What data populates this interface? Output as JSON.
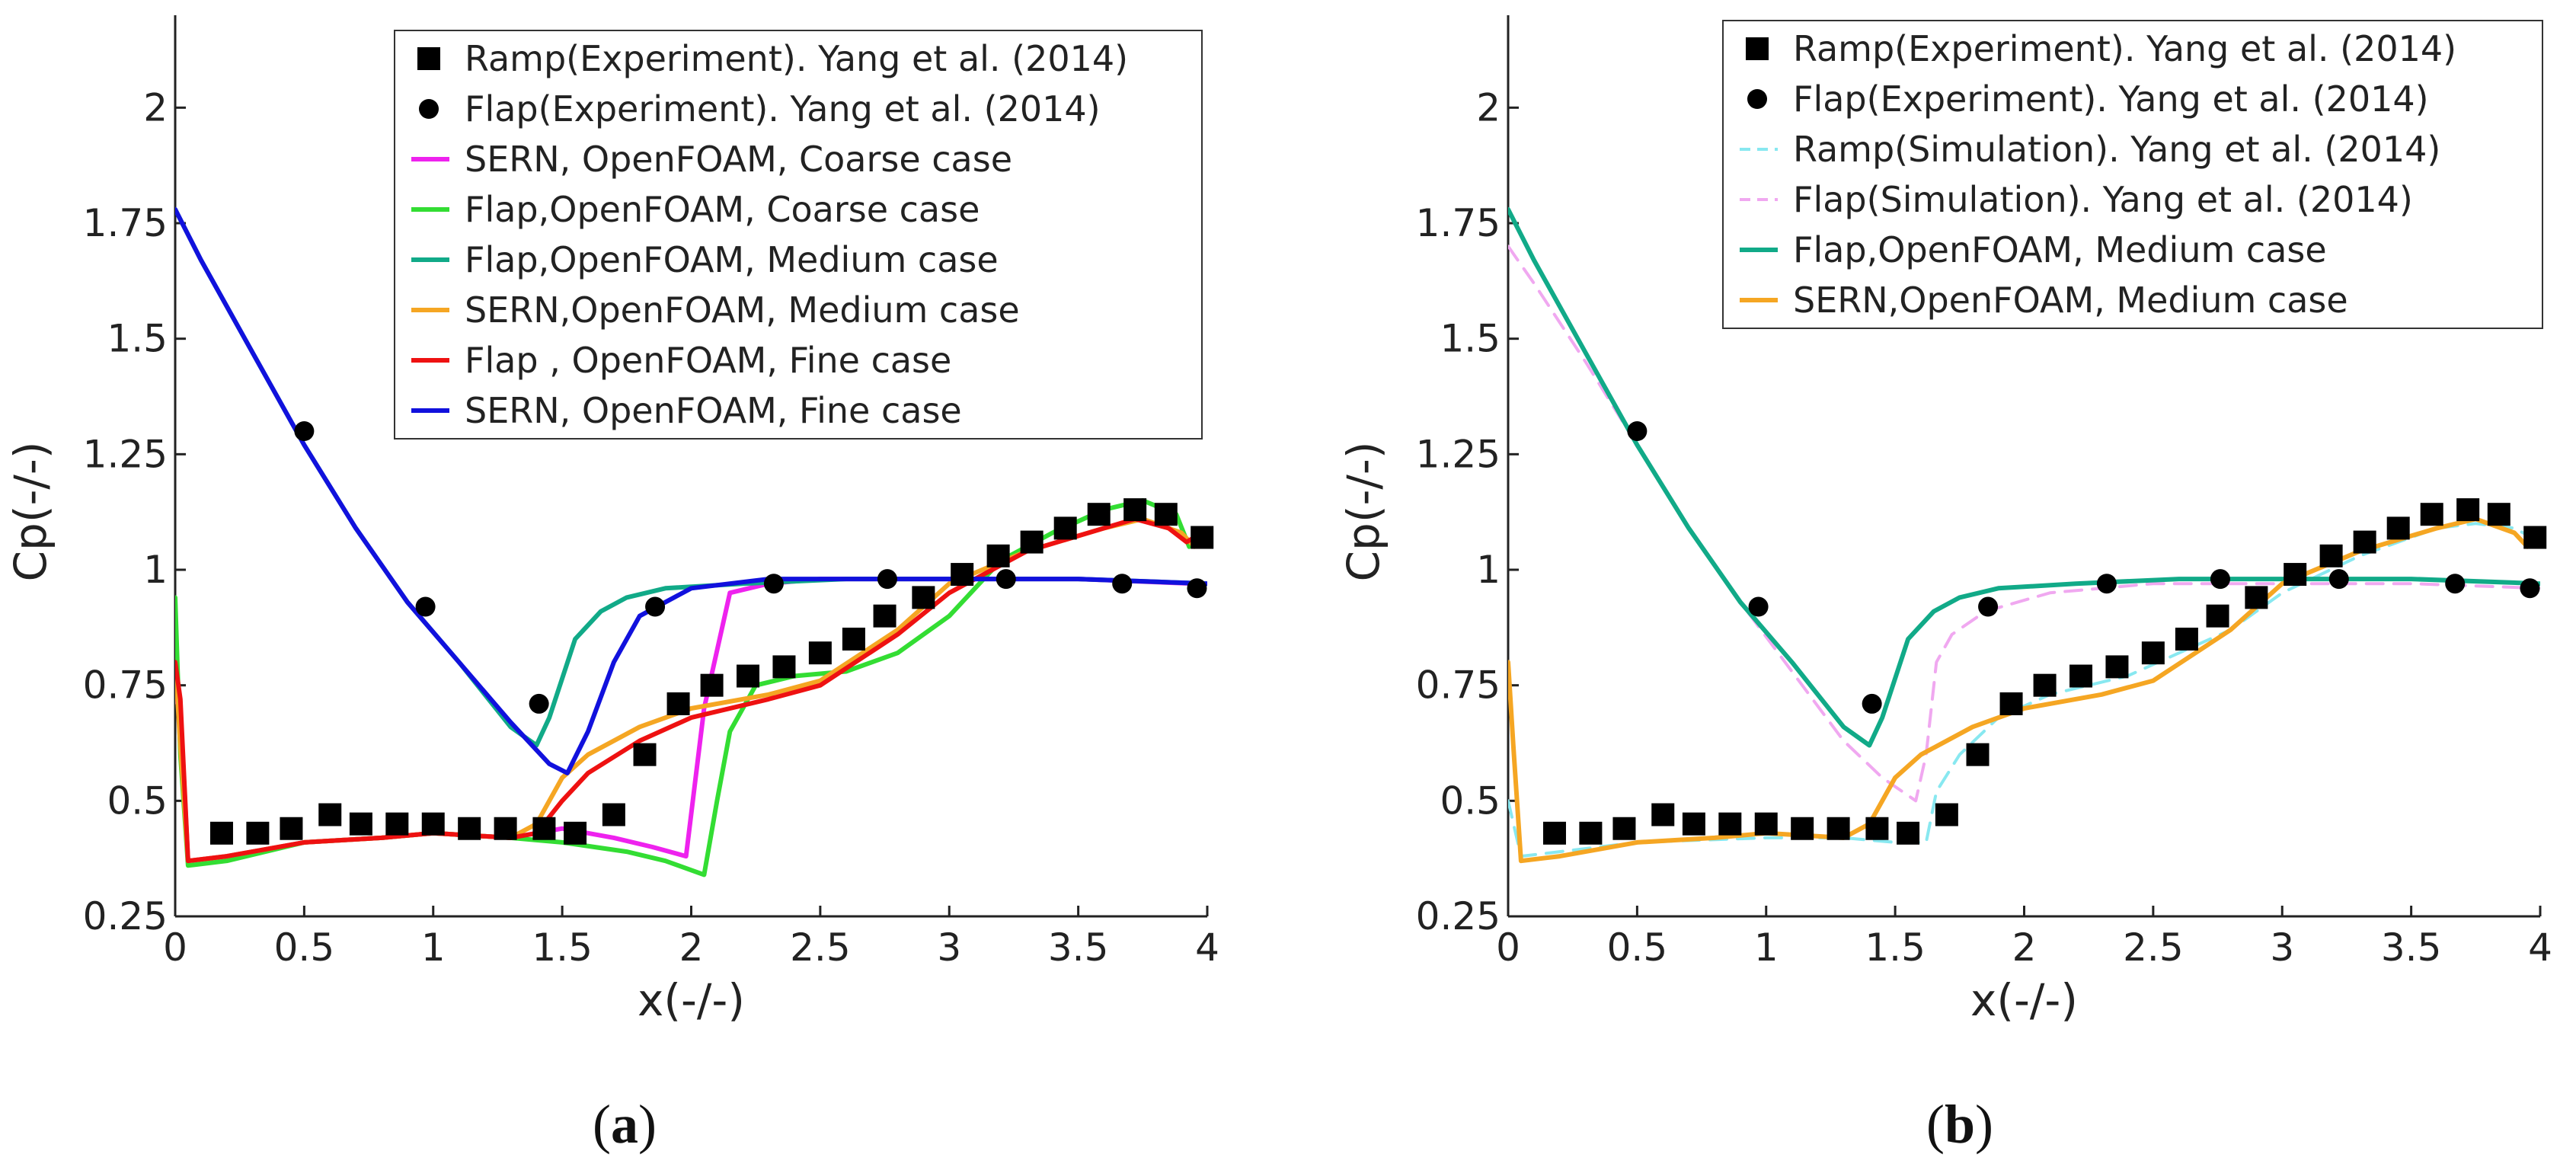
{
  "chart_data": [
    {
      "type": "line",
      "panel_label": "a",
      "xlabel": "x(-/-)",
      "ylabel": "Cp(-/-)",
      "xlim": [
        0,
        4
      ],
      "ylim": [
        0.25,
        2.2
      ],
      "x_ticks": [
        {
          "v": 0,
          "label": "0"
        },
        {
          "v": 0.5,
          "label": "0.5"
        },
        {
          "v": 1,
          "label": "1"
        },
        {
          "v": 1.5,
          "label": "1.5"
        },
        {
          "v": 2,
          "label": "2"
        },
        {
          "v": 2.5,
          "label": "2.5"
        },
        {
          "v": 3,
          "label": "3"
        },
        {
          "v": 3.5,
          "label": "3.5"
        },
        {
          "v": 4,
          "label": "4"
        }
      ],
      "y_ticks": [
        {
          "v": 0.25,
          "label": "0.25"
        },
        {
          "v": 0.5,
          "label": "0.5"
        },
        {
          "v": 0.75,
          "label": "0.75"
        },
        {
          "v": 1,
          "label": "1"
        },
        {
          "v": 1.25,
          "label": "1.25"
        },
        {
          "v": 1.5,
          "label": "1.5"
        },
        {
          "v": 1.75,
          "label": "1.75"
        },
        {
          "v": 2,
          "label": "2"
        }
      ],
      "legend_position": "top-right",
      "series": [
        {
          "name": "Ramp(Experiment). Yang et al. (2014)",
          "kind": "marker",
          "marker": "square",
          "color": "#000000",
          "x": [
            0.18,
            0.32,
            0.45,
            0.6,
            0.72,
            0.86,
            1.0,
            1.14,
            1.28,
            1.43,
            1.55,
            1.7,
            1.82,
            1.95,
            2.08,
            2.22,
            2.36,
            2.5,
            2.63,
            2.75,
            2.9,
            3.05,
            3.19,
            3.32,
            3.45,
            3.58,
            3.72,
            3.84,
            3.98
          ],
          "y": [
            0.43,
            0.43,
            0.44,
            0.47,
            0.45,
            0.45,
            0.45,
            0.44,
            0.44,
            0.44,
            0.43,
            0.47,
            0.6,
            0.71,
            0.75,
            0.77,
            0.79,
            0.82,
            0.85,
            0.9,
            0.94,
            0.99,
            1.03,
            1.06,
            1.09,
            1.12,
            1.13,
            1.12,
            1.07
          ]
        },
        {
          "name": "Flap(Experiment). Yang et al. (2014)",
          "kind": "marker",
          "marker": "circle",
          "color": "#000000",
          "x": [
            0.5,
            0.97,
            1.41,
            1.86,
            2.32,
            2.76,
            3.22,
            3.67,
            3.96
          ],
          "y": [
            1.3,
            0.92,
            0.71,
            0.92,
            0.97,
            0.98,
            0.98,
            0.97,
            0.96
          ]
        },
        {
          "name": "SERN, OpenFOAM, Coarse case",
          "kind": "line",
          "color": "#ee22ee",
          "dash": "",
          "x": [
            0,
            0.02,
            0.05,
            0.2,
            0.5,
            0.8,
            1.0,
            1.3,
            1.5,
            1.7,
            1.85,
            1.98,
            2.05,
            2.15,
            2.3,
            2.5,
            3.0,
            3.5,
            3.95
          ],
          "y": [
            0.72,
            0.7,
            0.37,
            0.38,
            0.41,
            0.42,
            0.43,
            0.42,
            0.44,
            0.42,
            0.4,
            0.38,
            0.7,
            0.95,
            0.97,
            0.98,
            0.98,
            0.98,
            0.97
          ]
        },
        {
          "name": "Flap,OpenFOAM, Coarse case",
          "kind": "line",
          "color": "#33dd33",
          "dash": "",
          "x": [
            0,
            0.02,
            0.05,
            0.2,
            0.5,
            0.8,
            1.0,
            1.3,
            1.5,
            1.75,
            1.9,
            2.05,
            2.1,
            2.15,
            2.25,
            2.4,
            2.6,
            2.8,
            3.0,
            3.2,
            3.4,
            3.6,
            3.75,
            3.88,
            3.93
          ],
          "y": [
            0.94,
            0.6,
            0.36,
            0.37,
            0.41,
            0.42,
            0.43,
            0.42,
            0.41,
            0.39,
            0.37,
            0.34,
            0.5,
            0.65,
            0.75,
            0.77,
            0.78,
            0.82,
            0.9,
            1.02,
            1.08,
            1.13,
            1.15,
            1.12,
            1.05
          ]
        },
        {
          "name": "Flap,OpenFOAM, Medium case",
          "kind": "line",
          "color": "#11aa88",
          "dash": "",
          "x": [
            0,
            0.1,
            0.3,
            0.5,
            0.7,
            0.9,
            1.1,
            1.3,
            1.4,
            1.45,
            1.55,
            1.65,
            1.75,
            1.9,
            2.2,
            2.6,
            3.0,
            3.5,
            4.0
          ],
          "y": [
            1.78,
            1.67,
            1.47,
            1.27,
            1.09,
            0.93,
            0.8,
            0.66,
            0.62,
            0.68,
            0.85,
            0.91,
            0.94,
            0.96,
            0.97,
            0.98,
            0.98,
            0.98,
            0.97
          ]
        },
        {
          "name": "SERN,OpenFOAM, Medium case",
          "kind": "line",
          "color": "#f5a623",
          "dash": "",
          "x": [
            0,
            0.02,
            0.05,
            0.2,
            0.5,
            0.8,
            1.0,
            1.3,
            1.4,
            1.5,
            1.6,
            1.8,
            2.0,
            2.3,
            2.5,
            2.8,
            3.0,
            3.3,
            3.6,
            3.75,
            3.9,
            3.95
          ],
          "y": [
            0.8,
            0.62,
            0.37,
            0.38,
            0.41,
            0.42,
            0.43,
            0.42,
            0.45,
            0.55,
            0.6,
            0.66,
            0.7,
            0.73,
            0.76,
            0.87,
            0.97,
            1.04,
            1.09,
            1.11,
            1.08,
            1.05
          ]
        },
        {
          "name": "Flap , OpenFOAM, Fine case",
          "kind": "line",
          "color": "#ee1111",
          "dash": "",
          "x": [
            0,
            0.02,
            0.05,
            0.2,
            0.5,
            0.8,
            1.0,
            1.3,
            1.4,
            1.5,
            1.6,
            1.8,
            2.0,
            2.3,
            2.5,
            2.8,
            3.0,
            3.3,
            3.6,
            3.72,
            3.85,
            3.92,
            3.95
          ],
          "y": [
            0.8,
            0.72,
            0.37,
            0.38,
            0.41,
            0.42,
            0.43,
            0.42,
            0.43,
            0.5,
            0.56,
            0.63,
            0.68,
            0.72,
            0.75,
            0.86,
            0.95,
            1.04,
            1.09,
            1.11,
            1.09,
            1.06,
            1.07
          ]
        },
        {
          "name": "SERN, OpenFOAM, Fine case",
          "kind": "line",
          "color": "#1111dd",
          "dash": "",
          "x": [
            0,
            0.1,
            0.3,
            0.5,
            0.7,
            0.9,
            1.1,
            1.3,
            1.45,
            1.52,
            1.6,
            1.7,
            1.8,
            2.0,
            2.3,
            2.7,
            3.0,
            3.5,
            4.0
          ],
          "y": [
            1.78,
            1.67,
            1.47,
            1.27,
            1.09,
            0.93,
            0.8,
            0.67,
            0.58,
            0.56,
            0.65,
            0.8,
            0.9,
            0.96,
            0.98,
            0.98,
            0.98,
            0.98,
            0.97
          ]
        }
      ]
    },
    {
      "type": "line",
      "panel_label": "b",
      "xlabel": "x(-/-)",
      "ylabel": "Cp(-/-)",
      "xlim": [
        0,
        4
      ],
      "ylim": [
        0.25,
        2.2
      ],
      "x_ticks": [
        {
          "v": 0,
          "label": "0"
        },
        {
          "v": 0.5,
          "label": "0.5"
        },
        {
          "v": 1,
          "label": "1"
        },
        {
          "v": 1.5,
          "label": "1.5"
        },
        {
          "v": 2,
          "label": "2"
        },
        {
          "v": 2.5,
          "label": "2.5"
        },
        {
          "v": 3,
          "label": "3"
        },
        {
          "v": 3.5,
          "label": "3.5"
        },
        {
          "v": 4,
          "label": "4"
        }
      ],
      "y_ticks": [
        {
          "v": 0.25,
          "label": "0.25"
        },
        {
          "v": 0.5,
          "label": "0.5"
        },
        {
          "v": 0.75,
          "label": "0.75"
        },
        {
          "v": 1,
          "label": "1"
        },
        {
          "v": 1.25,
          "label": "1.25"
        },
        {
          "v": 1.5,
          "label": "1.5"
        },
        {
          "v": 1.75,
          "label": "1.75"
        },
        {
          "v": 2,
          "label": "2"
        }
      ],
      "legend_position": "top-right",
      "series": [
        {
          "name": "Ramp(Experiment). Yang et al. (2014)",
          "kind": "marker",
          "marker": "square",
          "color": "#000000",
          "x": [
            0.18,
            0.32,
            0.45,
            0.6,
            0.72,
            0.86,
            1.0,
            1.14,
            1.28,
            1.43,
            1.55,
            1.7,
            1.82,
            1.95,
            2.08,
            2.22,
            2.36,
            2.5,
            2.63,
            2.75,
            2.9,
            3.05,
            3.19,
            3.32,
            3.45,
            3.58,
            3.72,
            3.84,
            3.98
          ],
          "y": [
            0.43,
            0.43,
            0.44,
            0.47,
            0.45,
            0.45,
            0.45,
            0.44,
            0.44,
            0.44,
            0.43,
            0.47,
            0.6,
            0.71,
            0.75,
            0.77,
            0.79,
            0.82,
            0.85,
            0.9,
            0.94,
            0.99,
            1.03,
            1.06,
            1.09,
            1.12,
            1.13,
            1.12,
            1.07
          ]
        },
        {
          "name": "Flap(Experiment). Yang et al. (2014)",
          "kind": "marker",
          "marker": "circle",
          "color": "#000000",
          "x": [
            0.5,
            0.97,
            1.41,
            1.86,
            2.32,
            2.76,
            3.22,
            3.67,
            3.96
          ],
          "y": [
            1.3,
            0.92,
            0.71,
            0.92,
            0.97,
            0.98,
            0.98,
            0.97,
            0.96
          ]
        },
        {
          "name": "Ramp(Simulation). Yang et al. (2014)",
          "kind": "line",
          "color": "#88e8f0",
          "dash": "dashed",
          "x": [
            0,
            0.05,
            0.2,
            0.5,
            1.0,
            1.3,
            1.5,
            1.62,
            1.66,
            1.75,
            1.9,
            2.1,
            2.4,
            2.6,
            2.8,
            3.0,
            3.3,
            3.6,
            3.75,
            3.9,
            4.0
          ],
          "y": [
            0.5,
            0.38,
            0.39,
            0.41,
            0.42,
            0.42,
            0.41,
            0.41,
            0.52,
            0.6,
            0.68,
            0.73,
            0.77,
            0.82,
            0.87,
            0.95,
            1.03,
            1.09,
            1.1,
            1.09,
            1.06
          ]
        },
        {
          "name": "Flap(Simulation). Yang et al. (2014)",
          "kind": "line",
          "color": "#f0a8f0",
          "dash": "dashed",
          "x": [
            0,
            0.1,
            0.3,
            0.5,
            0.7,
            0.9,
            1.1,
            1.3,
            1.45,
            1.58,
            1.62,
            1.66,
            1.72,
            1.85,
            2.1,
            2.5,
            3.0,
            3.5,
            4.0
          ],
          "y": [
            1.7,
            1.62,
            1.45,
            1.27,
            1.09,
            0.93,
            0.78,
            0.63,
            0.55,
            0.5,
            0.6,
            0.8,
            0.86,
            0.91,
            0.95,
            0.97,
            0.97,
            0.97,
            0.96
          ]
        },
        {
          "name": "Flap,OpenFOAM, Medium case",
          "kind": "line",
          "color": "#11aa88",
          "dash": "",
          "x": [
            0,
            0.1,
            0.3,
            0.5,
            0.7,
            0.9,
            1.1,
            1.3,
            1.4,
            1.45,
            1.55,
            1.65,
            1.75,
            1.9,
            2.2,
            2.6,
            3.0,
            3.5,
            4.0
          ],
          "y": [
            1.78,
            1.67,
            1.47,
            1.27,
            1.09,
            0.93,
            0.8,
            0.66,
            0.62,
            0.68,
            0.85,
            0.91,
            0.94,
            0.96,
            0.97,
            0.98,
            0.98,
            0.98,
            0.97
          ]
        },
        {
          "name": "SERN,OpenFOAM, Medium case",
          "kind": "line",
          "color": "#f5a623",
          "dash": "",
          "x": [
            0,
            0.02,
            0.05,
            0.2,
            0.5,
            0.8,
            1.0,
            1.3,
            1.4,
            1.5,
            1.6,
            1.8,
            2.0,
            2.3,
            2.5,
            2.8,
            3.0,
            3.3,
            3.6,
            3.75,
            3.9,
            3.95
          ],
          "y": [
            0.8,
            0.62,
            0.37,
            0.38,
            0.41,
            0.42,
            0.43,
            0.42,
            0.45,
            0.55,
            0.6,
            0.66,
            0.7,
            0.73,
            0.76,
            0.87,
            0.97,
            1.04,
            1.09,
            1.11,
            1.08,
            1.05
          ]
        }
      ]
    }
  ]
}
